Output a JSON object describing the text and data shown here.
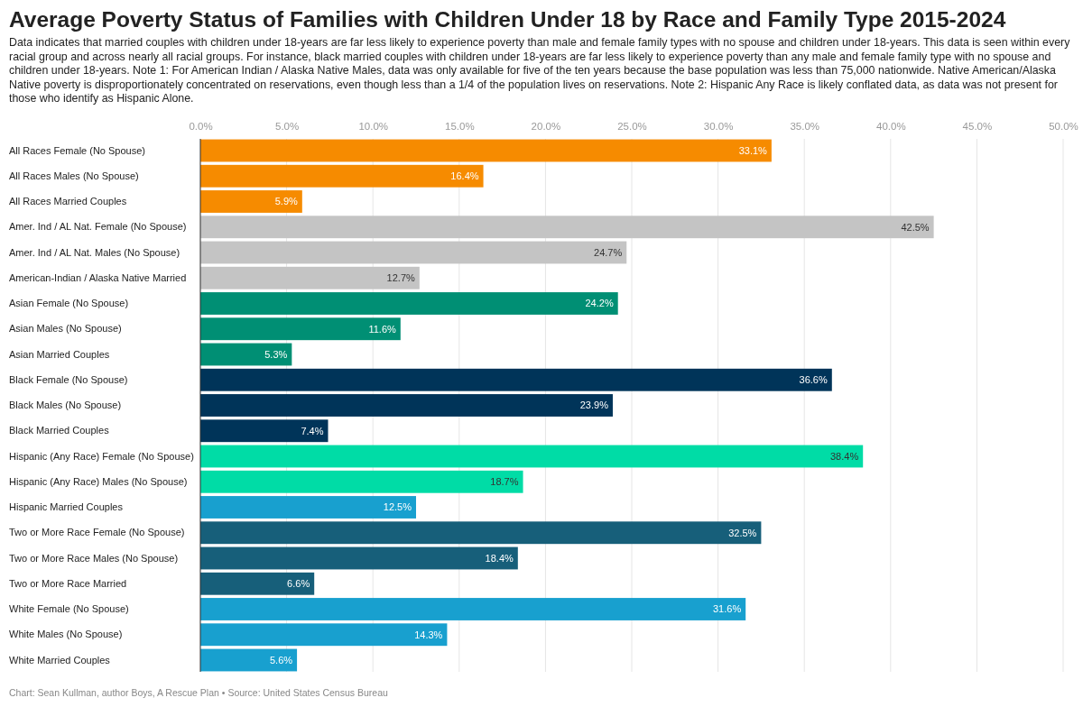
{
  "chart_data": {
    "type": "bar",
    "orientation": "horizontal",
    "title": "Average Poverty Status of Families with Children Under 18 by Race and Family Type 2015-2024",
    "subtitle": "Data indicates that married couples with children under 18-years are far less likely to experience poverty than male and female family types with no spouse and children under 18-years. This data is seen within every racial group and across nearly all racial groups. For instance, black married couples with children under 18-years are far less likely to experience poverty than any male and female family type with no spouse and children under 18-years. Note 1: For American Indian / Alaska Native Males, data was only available for five of the ten years because the base population was less than 75,000 nationwide. Native American/Alaska Native poverty is disproportionately concentrated on reservations, even though less than a 1/4 of the population lives on reservations. Note 2: Hispanic Any Race is likely conflated data, as data was not present for those who identify as Hispanic Alone.",
    "categories": [
      "All Races Female (No Spouse)",
      "All Races Males (No Spouse)",
      "All Races Married Couples",
      "Amer. Ind / AL Nat. Female (No Spouse)",
      "Amer. Ind / AL Nat. Males (No Spouse)",
      "American-Indian / Alaska Native Married",
      "Asian Female (No Spouse)",
      "Asian Males (No Spouse)",
      "Asian Married Couples",
      "Black Female (No Spouse)",
      "Black Males (No Spouse)",
      "Black Married Couples",
      "Hispanic (Any Race) Female (No Spouse)",
      "Hispanic (Any Race) Males (No Spouse)",
      "Hispanic Married Couples",
      "Two or More Race Female (No Spouse)",
      "Two or More Race Males (No Spouse)",
      "Two or More Race Married",
      "White Female (No Spouse)",
      "White Males (No Spouse)",
      "White Married Couples"
    ],
    "values": [
      33.1,
      16.4,
      5.9,
      42.5,
      24.7,
      12.7,
      24.2,
      11.6,
      5.3,
      36.6,
      23.9,
      7.4,
      38.4,
      18.7,
      12.5,
      32.5,
      18.4,
      6.6,
      31.6,
      14.3,
      5.6
    ],
    "value_labels": [
      "33.1%",
      "16.4%",
      "5.9%",
      "42.5%",
      "24.7%",
      "12.7%",
      "24.2%",
      "11.6%",
      "5.3%",
      "36.6%",
      "23.9%",
      "7.4%",
      "38.4%",
      "18.7%",
      "12.5%",
      "32.5%",
      "18.4%",
      "6.6%",
      "31.6%",
      "14.3%",
      "5.6%"
    ],
    "colors": [
      "#f68b00",
      "#f68b00",
      "#f68b00",
      "#c4c4c4",
      "#c4c4c4",
      "#c4c4c4",
      "#008f74",
      "#008f74",
      "#008f74",
      "#003459",
      "#003459",
      "#003459",
      "#00dca6",
      "#00dca6",
      "#18a0cf",
      "#175f7a",
      "#175f7a",
      "#175f7a",
      "#18a0cf",
      "#18a0cf",
      "#18a0cf"
    ],
    "xlim": [
      0,
      50
    ],
    "xticks": [
      {
        "value": 0,
        "label": "0.0%"
      },
      {
        "value": 5,
        "label": "5.0%"
      },
      {
        "value": 10,
        "label": "10.0%"
      },
      {
        "value": 15,
        "label": "15.0%"
      },
      {
        "value": 20,
        "label": "20.0%"
      },
      {
        "value": 25,
        "label": "25.0%"
      },
      {
        "value": 30,
        "label": "30.0%"
      },
      {
        "value": 35,
        "label": "35.0%"
      },
      {
        "value": 40,
        "label": "40.0%"
      },
      {
        "value": 45,
        "label": "45.0%"
      },
      {
        "value": 50,
        "label": "50.0%"
      }
    ],
    "grid": "x",
    "annotations": [
      "Chart: Sean Kullman, author Boys, A Rescue Plan • Source: United States Census Bureau"
    ]
  }
}
